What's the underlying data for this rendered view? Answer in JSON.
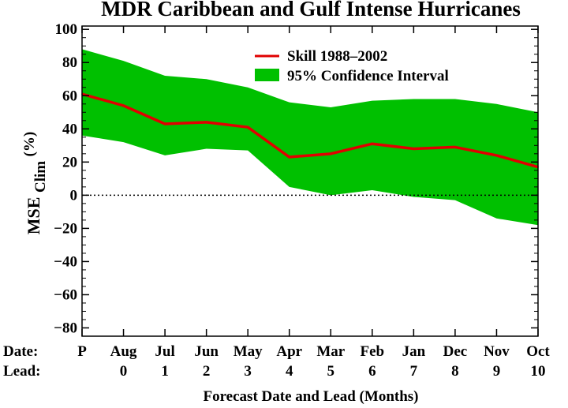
{
  "chart_data": {
    "type": "area",
    "title": "MDR Caribbean and Gulf Intense Hurricanes",
    "xlabel": "Forecast Date and Lead (Months)",
    "ylabel": "MSE",
    "ylabel_subscript": "Clim",
    "ylabel_unit": "(%)",
    "row_labels": {
      "date": "Date:",
      "lead": "Lead:"
    },
    "dates": [
      "P",
      "Aug",
      "Jul",
      "Jun",
      "May",
      "Apr",
      "Mar",
      "Feb",
      "Jan",
      "Dec",
      "Nov",
      "Oct"
    ],
    "leads": [
      "",
      "0",
      "1",
      "2",
      "3",
      "4",
      "5",
      "6",
      "7",
      "8",
      "9",
      "10"
    ],
    "ylim": [
      -85,
      102
    ],
    "yticks": [
      -80,
      -60,
      -40,
      -20,
      0,
      20,
      40,
      60,
      80,
      100
    ],
    "ytick_labels": [
      "−80",
      "−60",
      "−40",
      "−20",
      "0",
      "20",
      "40",
      "60",
      "80",
      "100"
    ],
    "series": [
      {
        "name": "Skill 1988–2002",
        "values": [
          61,
          54,
          43,
          44,
          41,
          23,
          25,
          31,
          28,
          29,
          24,
          17
        ]
      }
    ],
    "confidence_interval": {
      "name": "95% Confidence Interval",
      "upper": [
        88,
        81,
        72,
        70,
        65,
        56,
        53,
        57,
        58,
        58,
        55,
        50
      ],
      "lower": [
        36,
        32,
        24,
        28,
        27,
        5,
        0,
        3,
        -1,
        -3,
        -14,
        -18
      ]
    },
    "reference_line": {
      "y": 0,
      "style": "dotted"
    },
    "legend_position": "top-right",
    "colors": {
      "line": "#e00000",
      "band": "#00c000",
      "axis": "#000000"
    }
  }
}
